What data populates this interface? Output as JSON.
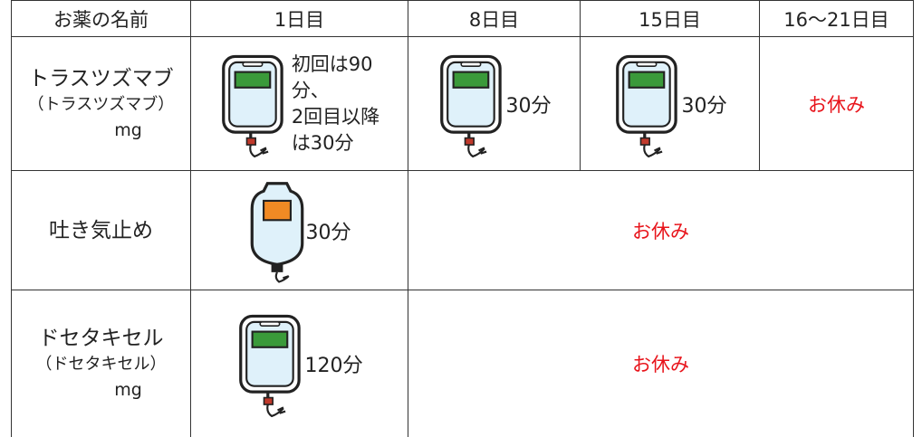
{
  "table": {
    "header": [
      "お薬の名前",
      "1日目",
      "8日目",
      "15日目",
      "16〜21日目"
    ],
    "rows": [
      {
        "name": [
          "トラスツズマブ",
          "（トラスツズマブ）",
          "mg"
        ],
        "cells": [
          [
            "初回は90",
            "分、",
            "2回目以降",
            "は30分"
          ],
          [
            "30分"
          ],
          [
            "30分"
          ],
          [
            "お休み"
          ]
        ]
      },
      {
        "name": [
          "吐き気止め"
        ],
        "cells": [
          [
            "30分"
          ],
          [
            "お休み"
          ]
        ]
      },
      {
        "name": [
          "ドセタキセル",
          "（ドセタキセル）",
          "mg"
        ],
        "cells": [
          [
            "120分"
          ],
          [
            "お休み"
          ]
        ]
      }
    ]
  }
}
